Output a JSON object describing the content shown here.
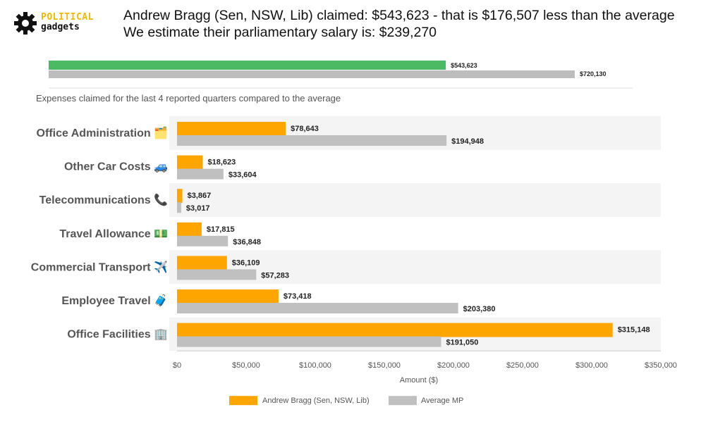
{
  "header": {
    "logo_top": "POLITICAL",
    "logo_bottom": "gadgets",
    "headline_line1": "Andrew Bragg (Sen, NSW, Lib) claimed: $543,623 - that is $176,507 less than the average",
    "headline_line2": "We estimate their parliamentary salary is: $239,270"
  },
  "summary_chart": {
    "member_value": 543623,
    "average_value": 720130,
    "member_label": "$543,623",
    "average_label": "$720,130",
    "member_color": "#4cba63",
    "average_color": "#bdbdbd"
  },
  "subtitle": "Expenses claimed for the last 4 reported quarters compared to the average",
  "chart_data": {
    "type": "bar",
    "orientation": "horizontal",
    "categories": [
      "Office Administration 🗂️",
      "Other Car Costs 🚙",
      "Telecommunications 📞",
      "Travel Allowance 💵",
      "Commercial Transport ✈️",
      "Employee Travel 🧳",
      "Office Facilities 🏢"
    ],
    "series": [
      {
        "name": "Andrew Bragg  (Sen, NSW, Lib)",
        "color": "#ffa500",
        "values": [
          78643,
          18623,
          3867,
          17815,
          36109,
          73418,
          315148
        ],
        "labels": [
          "$78,643",
          "$18,623",
          "$3,867",
          "$17,815",
          "$36,109",
          "$73,418",
          "$315,148"
        ]
      },
      {
        "name": "Average MP",
        "color": "#c0c0c0",
        "values": [
          194948,
          33604,
          3017,
          36848,
          57283,
          203380,
          191050
        ],
        "labels": [
          "$194,948",
          "$33,604",
          "$3,017",
          "$36,848",
          "$57,283",
          "$203,380",
          "$191,050"
        ]
      }
    ],
    "xlabel": "Amount ($)",
    "xlim": [
      0,
      350000
    ],
    "xticks": [
      0,
      50000,
      100000,
      150000,
      200000,
      250000,
      300000,
      350000
    ],
    "xtick_labels": [
      "$0",
      "$50,000",
      "$100,000",
      "$150,000",
      "$200,000",
      "$250,000",
      "$300,000",
      "$350,000"
    ],
    "legend_position": "bottom",
    "grid": false
  }
}
